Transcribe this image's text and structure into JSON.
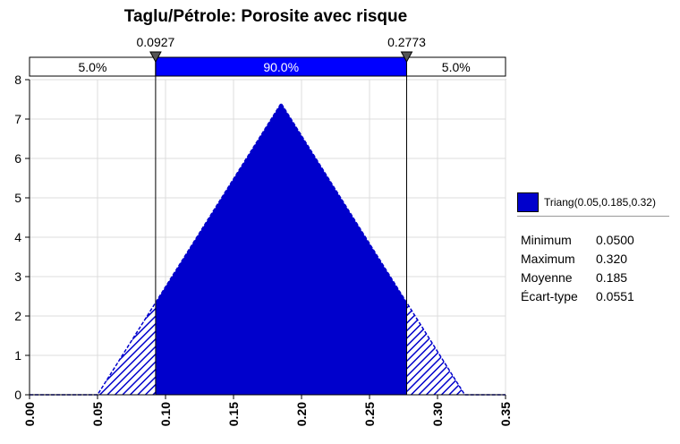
{
  "chart_data": {
    "type": "area",
    "title": "Taglu/Pétrole: Porosite avec risque",
    "distribution": {
      "name": "Triang",
      "min": 0.05,
      "mode": 0.185,
      "max": 0.32,
      "peak_density": 7.4
    },
    "x": [
      0.0,
      0.05,
      0.185,
      0.32,
      0.35
    ],
    "y": [
      0,
      0,
      7.4,
      0,
      0
    ],
    "xlim": [
      0.0,
      0.35
    ],
    "ylim": [
      0,
      8
    ],
    "xticks": [
      "0.00",
      "0.05",
      "0.10",
      "0.15",
      "0.20",
      "0.25",
      "0.30",
      "0.35"
    ],
    "yticks": [
      "0",
      "1",
      "2",
      "3",
      "4",
      "5",
      "6",
      "7",
      "8"
    ],
    "grid": true,
    "delimiters": {
      "left": "0.0927",
      "right": "0.2773"
    },
    "delimiter_values": [
      0.0927,
      0.2773
    ],
    "bands": [
      "5.0%",
      "90.0%",
      "5.0%"
    ],
    "legend": "Triang(0.05,0.185,0.32)",
    "stats": [
      {
        "label": "Minimum",
        "value": "0.0500"
      },
      {
        "label": "Maximum",
        "value": "0.320"
      },
      {
        "label": "Moyenne",
        "value": "0.185"
      },
      {
        "label": "Écart-type",
        "value": "0.0551"
      }
    ],
    "colors": {
      "fill": "#0000cc",
      "band_mid": "#0000ff",
      "hatch": "#0000cc"
    }
  }
}
